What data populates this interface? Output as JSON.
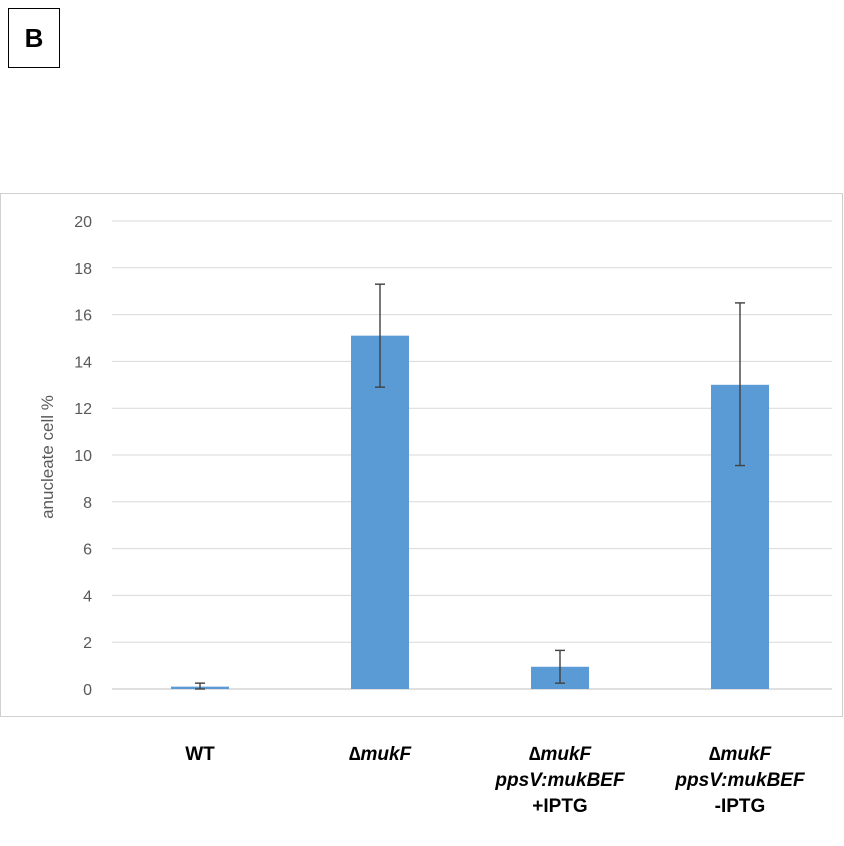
{
  "panel_label": "B",
  "chart_data": {
    "type": "bar",
    "ylabel": "anucleate cell %",
    "ylim": [
      0,
      20
    ],
    "yticks": [
      0,
      2,
      4,
      6,
      8,
      10,
      12,
      14,
      16,
      18,
      20
    ],
    "grid": true,
    "bar_color": "#5b9bd5",
    "categories": [
      {
        "lines": [
          {
            "text": "WT",
            "italic": false
          }
        ]
      },
      {
        "lines": [
          {
            "text": "∆mukF",
            "italic": true
          }
        ]
      },
      {
        "lines": [
          {
            "text": "∆mukF",
            "italic": true
          },
          {
            "text": "ppsV:mukBEF",
            "italic": true
          },
          {
            "text": "+IPTG",
            "italic": false
          }
        ]
      },
      {
        "lines": [
          {
            "text": "∆mukF",
            "italic": true
          },
          {
            "text": "ppsV:mukBEF",
            "italic": true
          },
          {
            "text": "-IPTG",
            "italic": false
          }
        ]
      }
    ],
    "values": [
      0.1,
      15.1,
      0.95,
      13.0
    ],
    "error_low": [
      0.0,
      12.9,
      0.25,
      9.55
    ],
    "error_high": [
      0.25,
      17.3,
      1.65,
      16.5
    ]
  }
}
